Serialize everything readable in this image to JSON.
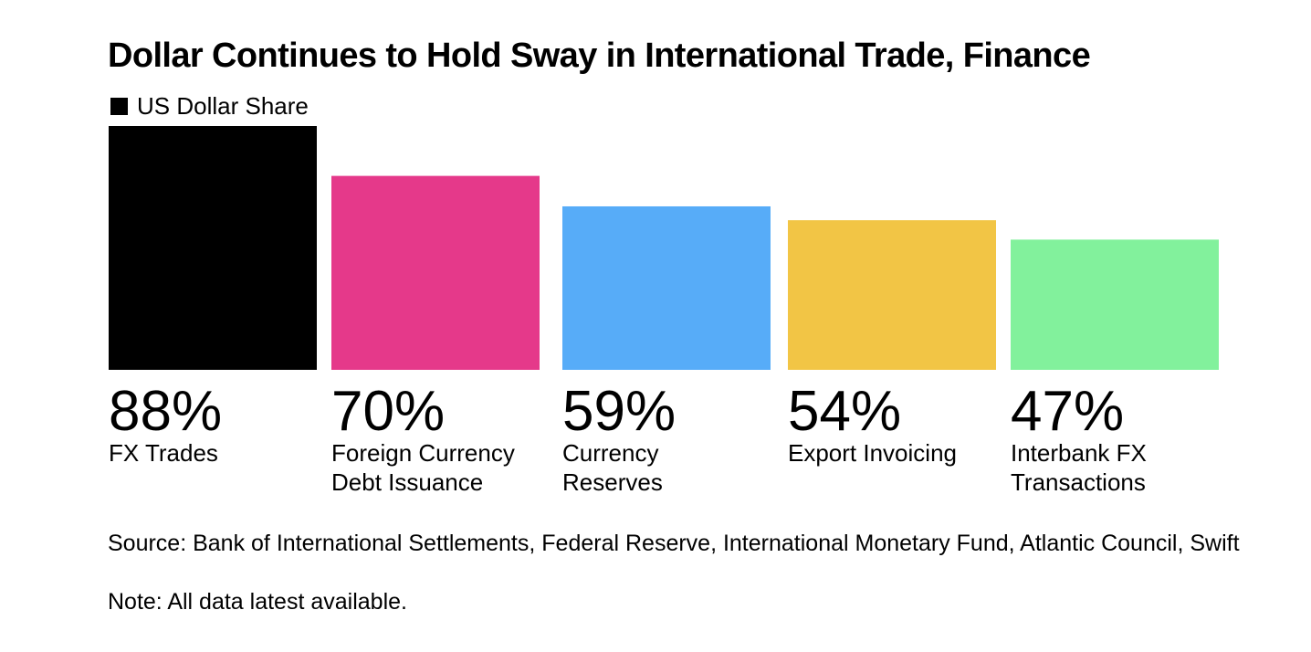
{
  "chart_data": {
    "type": "bar",
    "title": "Dollar Continues to Hold Sway in International Trade, Finance",
    "legend": {
      "label": "US Dollar Share",
      "color": "#000000",
      "placement": "top-left"
    },
    "categories": [
      [
        "FX Trades"
      ],
      [
        "Foreign Currency",
        "Debt Issuance"
      ],
      [
        "Currency",
        "Reserves"
      ],
      [
        "Export Invoicing"
      ],
      [
        "Interbank FX",
        "Transactions"
      ]
    ],
    "series": [
      {
        "name": "US Dollar Share",
        "values": [
          88,
          70,
          59,
          54,
          47
        ],
        "value_labels": [
          "88%",
          "70%",
          "59%",
          "54%",
          "47%"
        ],
        "colors": [
          "#000000",
          "#e5398a",
          "#57acf8",
          "#f2c545",
          "#82f19c"
        ]
      }
    ],
    "ylim": [
      0,
      88
    ],
    "grid": false,
    "axes_visible": false
  },
  "source": "Source: Bank of International Settlements, Federal Reserve, International Monetary Fund, Atlantic Council, Swift",
  "note": "Note: All data latest available."
}
